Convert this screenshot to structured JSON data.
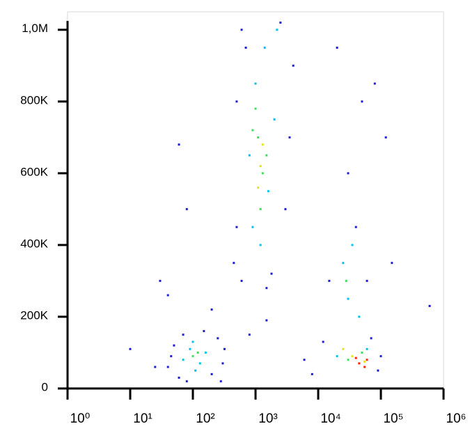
{
  "chart_data": {
    "type": "scatter",
    "xlog": true,
    "xlim": [
      1,
      1000000
    ],
    "ylim": [
      0,
      1050000
    ],
    "xticks": [
      {
        "value": 1,
        "label": "10⁰"
      },
      {
        "value": 10,
        "label": "10¹"
      },
      {
        "value": 100,
        "label": "10²"
      },
      {
        "value": 1000,
        "label": "10³"
      },
      {
        "value": 10000,
        "label": "10⁴"
      },
      {
        "value": 100000,
        "label": "10⁵"
      },
      {
        "value": 1000000,
        "label": "10⁶"
      }
    ],
    "yticks": [
      0,
      {
        "value": 200000,
        "label": "200K"
      },
      {
        "value": 400000,
        "label": "400K"
      },
      {
        "value": 600000,
        "label": "600K"
      },
      {
        "value": 800000,
        "label": "800K"
      },
      {
        "value": 1000000,
        "label": "1,0M"
      }
    ],
    "series": [
      {
        "color": "#1c1cd8",
        "x": [
          40,
          50,
          60,
          70,
          80,
          150,
          200,
          250,
          300,
          280,
          45,
          320,
          450,
          500,
          600,
          700,
          1800,
          3000,
          4000,
          3500,
          500,
          600,
          2500,
          1500,
          6000,
          8000,
          100000,
          90000,
          12000,
          70000,
          15000,
          40000,
          30000,
          50000,
          20000,
          80000,
          60000,
          10,
          25,
          30,
          80,
          60,
          40,
          200,
          800,
          1500,
          600000,
          150000,
          120000
        ],
        "values": [
          60000,
          120000,
          30000,
          150000,
          20000,
          160000,
          40000,
          140000,
          70000,
          20000,
          90000,
          110000,
          350000,
          800000,
          300000,
          950000,
          320000,
          500000,
          900000,
          700000,
          450000,
          1000000,
          1020000,
          280000,
          80000,
          40000,
          90000,
          50000,
          130000,
          140000,
          300000,
          450000,
          600000,
          800000,
          950000,
          850000,
          300000,
          110000,
          60000,
          300000,
          500000,
          680000,
          260000,
          220000,
          150000,
          190000,
          230000,
          350000,
          700000
        ]
      },
      {
        "color": "#00c0f0",
        "x": [
          70,
          90,
          130,
          160,
          110,
          100,
          900,
          1200,
          1000,
          1400,
          2000,
          800,
          1600,
          2200,
          25000,
          30000,
          20000,
          60000,
          35000,
          45000
        ],
        "values": [
          80000,
          110000,
          70000,
          100000,
          50000,
          130000,
          450000,
          400000,
          850000,
          950000,
          750000,
          650000,
          550000,
          1000000,
          350000,
          250000,
          90000,
          110000,
          400000,
          200000
        ]
      },
      {
        "color": "#3ede5a",
        "x": [
          100,
          120,
          1100,
          1300,
          1000,
          1500,
          1200,
          900,
          30000,
          50000,
          28000
        ],
        "values": [
          90000,
          100000,
          700000,
          600000,
          780000,
          650000,
          500000,
          720000,
          80000,
          100000,
          300000
        ]
      },
      {
        "color": "#e4e41c",
        "x": [
          1200,
          1100,
          1300,
          35000,
          55000,
          25000
        ],
        "values": [
          620000,
          560000,
          680000,
          90000,
          75000,
          110000
        ]
      },
      {
        "color": "#ff2400",
        "x": [
          45000,
          55000,
          40000,
          60000
        ],
        "values": [
          70000,
          60000,
          85000,
          80000
        ]
      }
    ]
  }
}
